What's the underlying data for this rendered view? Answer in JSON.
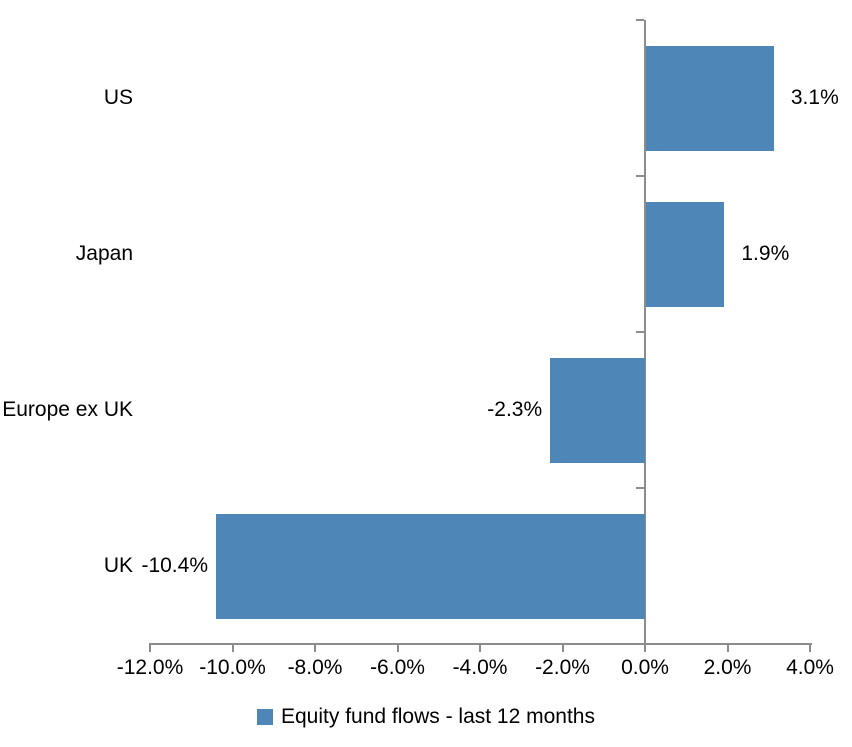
{
  "colors": {
    "bar": "#4e86b8",
    "axis": "#8c8c8c",
    "text": "#000000",
    "background": "#ffffff"
  },
  "legend": {
    "label": "Equity fund flows - last 12 months"
  },
  "chart_data": {
    "type": "bar",
    "orientation": "horizontal",
    "title": "",
    "xlabel": "",
    "ylabel": "",
    "grid": false,
    "legend_position": "bottom",
    "categories": [
      "US",
      "Japan",
      "Europe ex UK",
      "UK"
    ],
    "series": [
      {
        "name": "Equity fund flows - last 12 months",
        "values": [
          3.1,
          1.9,
          -2.3,
          -10.4
        ],
        "value_labels": [
          "3.1%",
          "1.9%",
          "-2.3%",
          "-10.4%"
        ]
      }
    ],
    "xlim": [
      -12,
      4
    ],
    "x_ticks": [
      -12,
      -10,
      -8,
      -6,
      -4,
      -2,
      0,
      2,
      4
    ],
    "x_tick_labels": [
      "-12.0%",
      "-10.0%",
      "-8.0%",
      "-6.0%",
      "-4.0%",
      "-2.0%",
      "0.0%",
      "2.0%",
      "4.0%"
    ]
  }
}
